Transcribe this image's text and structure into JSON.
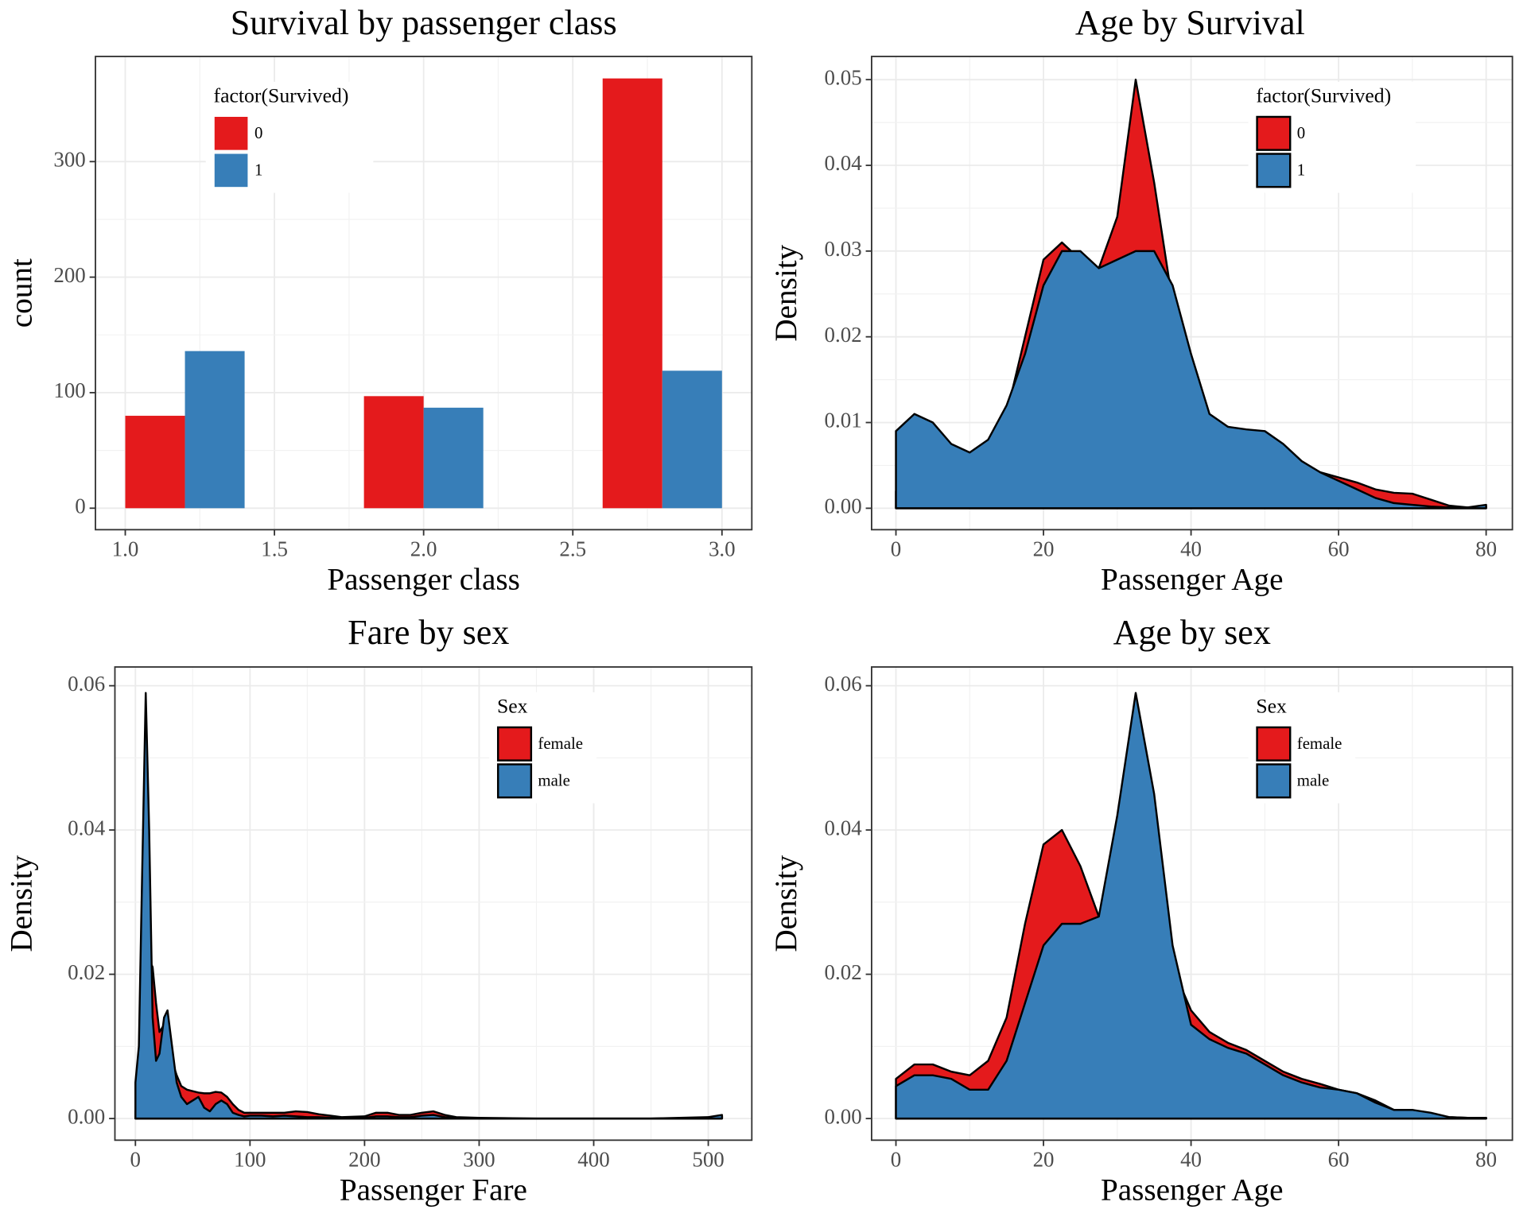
{
  "chart_data": [
    {
      "type": "bar",
      "title": "Survival by passenger class",
      "xlabel": "Passenger class",
      "ylabel": "count",
      "legend_title": "factor(Survived)",
      "legend": "top-left",
      "grid": true,
      "x": [
        1.2,
        2.0,
        2.8
      ],
      "series": [
        {
          "name": "0",
          "color": "#e41a1c",
          "values": [
            80,
            97,
            372
          ]
        },
        {
          "name": "1",
          "color": "#377eb8",
          "values": [
            136,
            87,
            119
          ]
        }
      ],
      "xlim": [
        0.9,
        3.1
      ],
      "ylim": [
        -18.6,
        391
      ],
      "xticks": [
        {
          "value": 1,
          "label": "1.0"
        },
        1.5,
        {
          "value": 2,
          "label": "2.0"
        },
        2.5,
        {
          "value": 3,
          "label": "3.0"
        }
      ],
      "yticks": [
        0,
        100,
        200,
        300
      ]
    },
    {
      "type": "density",
      "title": "Age by Survival",
      "xlabel": "Passenger Age",
      "ylabel": "Density",
      "legend_title": "factor(Survived)",
      "legend": "top-right",
      "grid": true,
      "x": [
        0,
        2.5,
        5,
        7.5,
        10,
        12.5,
        15,
        17.5,
        20,
        22.5,
        25,
        27.5,
        30,
        32.5,
        35,
        37.5,
        40,
        42.5,
        45,
        47.5,
        50,
        52.5,
        55,
        57.5,
        60,
        62.5,
        65,
        67.5,
        70,
        72.5,
        75,
        77.5,
        80
      ],
      "series": [
        {
          "name": "0",
          "color": "#e41a1c",
          "values": [
            0.002,
            0.003,
            0.004,
            0.004,
            0.004,
            0.006,
            0.011,
            0.02,
            0.029,
            0.031,
            0.029,
            0.028,
            0.034,
            0.05,
            0.038,
            0.024,
            0.015,
            0.0105,
            0.0095,
            0.009,
            0.008,
            0.0065,
            0.0052,
            0.0042,
            0.0036,
            0.003,
            0.0022,
            0.0018,
            0.0017,
            0.001,
            0.0003,
            0.0001,
            0.0002
          ]
        },
        {
          "name": "1",
          "color": "#377eb8",
          "values": [
            0.009,
            0.011,
            0.01,
            0.0075,
            0.0065,
            0.008,
            0.012,
            0.018,
            0.026,
            0.03,
            0.03,
            0.028,
            0.029,
            0.03,
            0.03,
            0.026,
            0.018,
            0.011,
            0.0095,
            0.0092,
            0.009,
            0.0075,
            0.0055,
            0.0042,
            0.0032,
            0.0022,
            0.0012,
            0.0006,
            0.0004,
            0.0002,
            0.0001,
            0.0001,
            0.0004
          ]
        }
      ],
      "xlim": [
        -3.3,
        83.56
      ],
      "ylim": [
        -0.0025,
        0.0527
      ],
      "xticks": [
        0,
        20,
        40,
        60,
        80
      ],
      "yticks": [
        {
          "value": 0,
          "label": "0.00"
        },
        0.01,
        0.02,
        0.03,
        0.04,
        0.05
      ]
    },
    {
      "type": "density",
      "title": "Fare by sex",
      "xlabel": "Passenger Fare",
      "ylabel": "Density",
      "legend_title": "Sex",
      "legend": "top-right",
      "grid": true,
      "x": [
        0,
        3,
        6,
        9,
        12,
        15,
        18,
        21,
        25,
        28,
        32,
        36,
        40,
        45,
        50,
        55,
        60,
        65,
        70,
        75,
        80,
        85,
        90,
        95,
        100,
        110,
        120,
        130,
        140,
        150,
        160,
        170,
        180,
        200,
        210,
        220,
        230,
        240,
        250,
        260,
        270,
        280,
        300,
        350,
        400,
        450,
        500,
        512
      ],
      "series": [
        {
          "name": "female",
          "color": "#e41a1c",
          "values": [
            0.001,
            0.002,
            0.008,
            0.018,
            0.022,
            0.021,
            0.016,
            0.012,
            0.013,
            0.012,
            0.008,
            0.006,
            0.0045,
            0.004,
            0.0038,
            0.0036,
            0.0035,
            0.0035,
            0.0037,
            0.0036,
            0.003,
            0.002,
            0.0012,
            0.0008,
            0.0008,
            0.0008,
            0.0008,
            0.0008,
            0.001,
            0.0009,
            0.0006,
            0.0004,
            0.0002,
            0.0003,
            0.0008,
            0.0008,
            0.0005,
            0.0005,
            0.0008,
            0.001,
            0.0005,
            0.0002,
            0.0001,
            0,
            0,
            0,
            0.0001,
            0.0003
          ]
        },
        {
          "name": "male",
          "color": "#377eb8",
          "values": [
            0.005,
            0.01,
            0.035,
            0.059,
            0.04,
            0.014,
            0.008,
            0.009,
            0.014,
            0.015,
            0.01,
            0.005,
            0.003,
            0.002,
            0.0025,
            0.003,
            0.0015,
            0.001,
            0.002,
            0.0025,
            0.002,
            0.0008,
            0.0005,
            0.0003,
            0.0004,
            0.0004,
            0.0003,
            0.0004,
            0.0003,
            0.0002,
            0.0002,
            0.0001,
            0.0001,
            0.0001,
            0.0003,
            0.0003,
            0.0002,
            0.0002,
            0.0004,
            0.0005,
            0.0002,
            0.0001,
            0,
            0,
            0,
            0,
            0.0002,
            0.0005
          ]
        }
      ],
      "xlim": [
        -17.9,
        538
      ],
      "ylim": [
        -0.003,
        0.0626
      ],
      "xticks": [
        0,
        100,
        200,
        300,
        400,
        500
      ],
      "yticks": [
        {
          "value": 0,
          "label": "0.00"
        },
        0.02,
        0.04,
        0.06
      ]
    },
    {
      "type": "density",
      "title": "Age by sex",
      "xlabel": "Passenger Age",
      "ylabel": "Density",
      "legend_title": "Sex",
      "legend": "top-right",
      "grid": true,
      "x": [
        0,
        2.5,
        5,
        7.5,
        10,
        12.5,
        15,
        17.5,
        20,
        22.5,
        25,
        27.5,
        30,
        32.5,
        35,
        37.5,
        40,
        42.5,
        45,
        47.5,
        50,
        52.5,
        55,
        57.5,
        60,
        62.5,
        65,
        67.5,
        70,
        72.5,
        75,
        77.5,
        80
      ],
      "series": [
        {
          "name": "female",
          "color": "#e41a1c",
          "values": [
            0.0055,
            0.0075,
            0.0075,
            0.0065,
            0.006,
            0.008,
            0.014,
            0.027,
            0.038,
            0.04,
            0.035,
            0.028,
            0.028,
            0.027,
            0.024,
            0.021,
            0.015,
            0.012,
            0.0105,
            0.0095,
            0.008,
            0.0065,
            0.0055,
            0.0048,
            0.004,
            0.0035,
            0.0025,
            0.0012,
            0.0008,
            0.0004,
            0.0002,
            0.0001,
            0.0001
          ]
        },
        {
          "name": "male",
          "color": "#377eb8",
          "values": [
            0.0045,
            0.006,
            0.006,
            0.0055,
            0.004,
            0.004,
            0.008,
            0.016,
            0.024,
            0.027,
            0.027,
            0.028,
            0.042,
            0.059,
            0.045,
            0.024,
            0.013,
            0.011,
            0.0098,
            0.009,
            0.0075,
            0.006,
            0.005,
            0.0043,
            0.004,
            0.0035,
            0.0022,
            0.0012,
            0.0012,
            0.0008,
            0.0002,
            0.0001,
            0.0001
          ]
        }
      ],
      "xlim": [
        -3.3,
        83.56
      ],
      "ylim": [
        -0.003,
        0.0626
      ],
      "xticks": [
        0,
        20,
        40,
        60,
        80
      ],
      "yticks": [
        {
          "value": 0,
          "label": "0.00"
        },
        0.02,
        0.04,
        0.06
      ]
    }
  ]
}
